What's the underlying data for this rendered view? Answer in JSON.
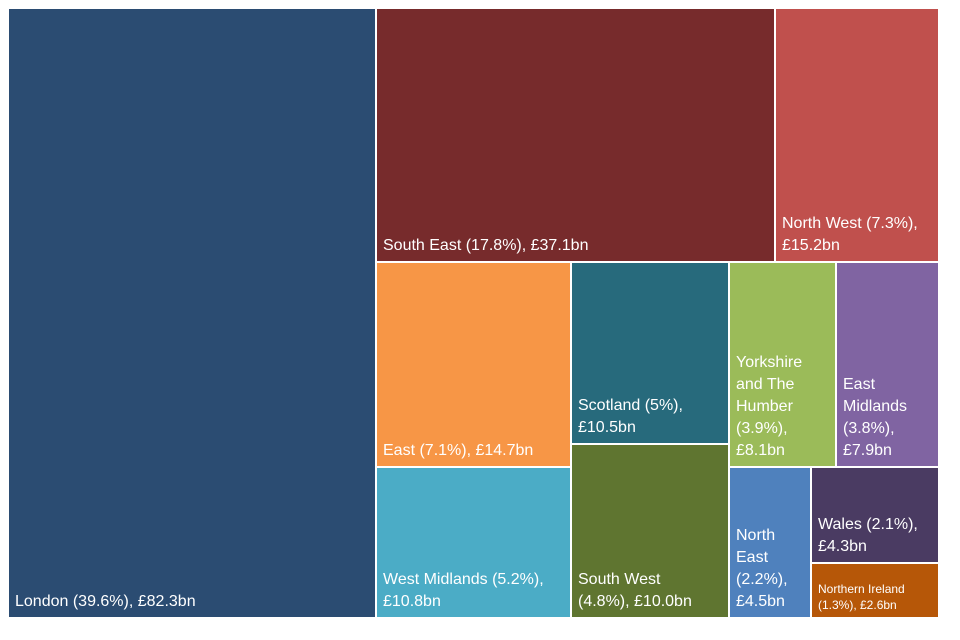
{
  "chart_data": {
    "type": "treemap",
    "title": "",
    "unit": "£bn",
    "items": [
      {
        "name": "London",
        "share": 39.6,
        "value": 82.3,
        "label": "London (39.6%),  £82.3bn",
        "color": "#2b4c72"
      },
      {
        "name": "South East",
        "share": 17.8,
        "value": 37.1,
        "label": "South East (17.8%), £37.1bn",
        "color": "#772b2c"
      },
      {
        "name": "North West",
        "share": 7.3,
        "value": 15.2,
        "label": "North West (7.3%),\n£15.2bn",
        "color": "#c0504d"
      },
      {
        "name": "East",
        "share": 7.1,
        "value": 14.7,
        "label": "East (7.1%), £14.7bn",
        "color": "#f79646"
      },
      {
        "name": "Scotland",
        "share": 5,
        "value": 10.5,
        "label": "Scotland (5%),\n£10.5bn",
        "color": "#276a7c"
      },
      {
        "name": "Yorkshire and The Humber",
        "share": 3.9,
        "value": 8.1,
        "label": "Yorkshire\nand The\nHumber\n(3.9%),\n£8.1bn",
        "color": "#9bbb59"
      },
      {
        "name": "East Midlands",
        "share": 3.8,
        "value": 7.9,
        "label": "East\nMidlands\n(3.8%),\n£7.9bn",
        "color": "#8064a2"
      },
      {
        "name": "West Midlands",
        "share": 5.2,
        "value": 10.8,
        "label": "West Midlands (5.2%),\n£10.8bn",
        "color": "#4bacc6"
      },
      {
        "name": "South West",
        "share": 4.8,
        "value": 10.0,
        "label": "South West\n(4.8%), £10.0bn",
        "color": "#5f7530"
      },
      {
        "name": "North East",
        "share": 2.2,
        "value": 4.5,
        "label": "North\nEast\n(2.2%),\n£4.5bn",
        "color": "#4f81bd"
      },
      {
        "name": "Wales",
        "share": 2.1,
        "value": 4.3,
        "label": "Wales (2.1%),\n£4.3bn",
        "color": "#4a3b62"
      },
      {
        "name": "Northern Ireland",
        "share": 1.3,
        "value": 2.6,
        "label": "Northern Ireland\n(1.3%), £2.6bn",
        "color": "#b65708"
      }
    ]
  }
}
